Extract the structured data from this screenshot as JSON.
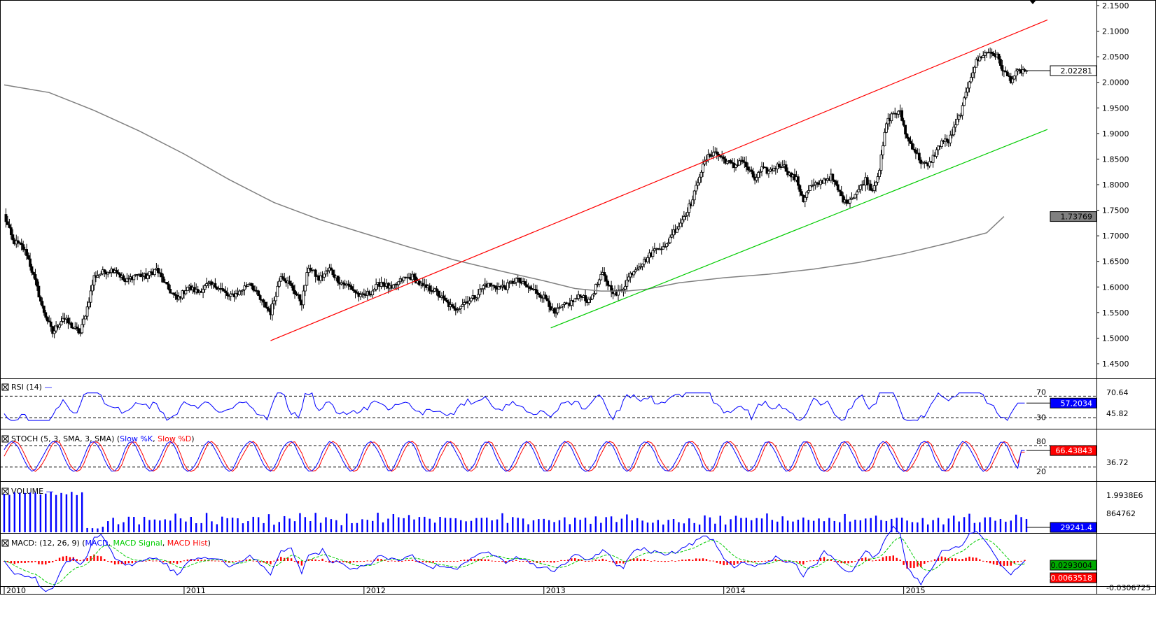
{
  "chart_data": {
    "type": "candlestick",
    "interval": "weekly",
    "price": {
      "y_ticks": [
        "2.1500",
        "2.1000",
        "2.0500",
        "2.0000",
        "1.9500",
        "1.9000",
        "1.8500",
        "1.8000",
        "1.7500",
        "1.7000",
        "1.6500",
        "1.6000",
        "1.5500",
        "1.5000",
        "1.4500"
      ],
      "ylim": [
        1.43,
        2.16
      ],
      "last_price": "2.02281",
      "ma_value": "1.73769",
      "ma_points": [
        [
          0,
          1.995
        ],
        [
          26,
          1.98
        ],
        [
          52,
          1.945
        ],
        [
          78,
          1.905
        ],
        [
          104,
          1.86
        ],
        [
          130,
          1.81
        ],
        [
          156,
          1.765
        ],
        [
          182,
          1.732
        ],
        [
          208,
          1.705
        ],
        [
          234,
          1.678
        ],
        [
          260,
          1.653
        ],
        [
          286,
          1.632
        ],
        [
          312,
          1.612
        ],
        [
          330,
          1.597
        ],
        [
          345,
          1.592
        ],
        [
          360,
          1.592
        ],
        [
          372,
          1.596
        ],
        [
          390,
          1.608
        ],
        [
          416,
          1.618
        ],
        [
          442,
          1.625
        ],
        [
          468,
          1.635
        ],
        [
          494,
          1.648
        ],
        [
          520,
          1.665
        ],
        [
          546,
          1.686
        ],
        [
          568,
          1.706
        ],
        [
          578,
          1.7377
        ]
      ],
      "channel_upper": {
        "from": [
          154,
          1.495
        ],
        "to": [
          592,
          2.122
        ]
      },
      "channel_lower": {
        "from": [
          316,
          1.52
        ],
        "to": [
          592,
          1.908
        ]
      },
      "swing_points": [
        [
          0,
          1.74
        ],
        [
          5,
          1.69
        ],
        [
          10,
          1.68
        ],
        [
          13,
          1.665
        ],
        [
          18,
          1.61
        ],
        [
          22,
          1.56
        ],
        [
          28,
          1.51
        ],
        [
          34,
          1.54
        ],
        [
          40,
          1.52
        ],
        [
          44,
          1.51
        ],
        [
          48,
          1.56
        ],
        [
          52,
          1.62
        ],
        [
          58,
          1.63
        ],
        [
          64,
          1.635
        ],
        [
          70,
          1.61
        ],
        [
          76,
          1.625
        ],
        [
          82,
          1.62
        ],
        [
          88,
          1.635
        ],
        [
          94,
          1.6
        ],
        [
          100,
          1.575
        ],
        [
          106,
          1.6
        ],
        [
          112,
          1.59
        ],
        [
          118,
          1.605
        ],
        [
          124,
          1.6
        ],
        [
          130,
          1.58
        ],
        [
          136,
          1.59
        ],
        [
          142,
          1.61
        ],
        [
          148,
          1.575
        ],
        [
          154,
          1.55
        ],
        [
          160,
          1.625
        ],
        [
          166,
          1.6
        ],
        [
          172,
          1.57
        ],
        [
          176,
          1.64
        ],
        [
          182,
          1.615
        ],
        [
          188,
          1.635
        ],
        [
          194,
          1.61
        ],
        [
          200,
          1.6
        ],
        [
          206,
          1.58
        ],
        [
          212,
          1.59
        ],
        [
          218,
          1.61
        ],
        [
          224,
          1.595
        ],
        [
          230,
          1.615
        ],
        [
          236,
          1.62
        ],
        [
          242,
          1.6
        ],
        [
          248,
          1.595
        ],
        [
          254,
          1.575
        ],
        [
          260,
          1.555
        ],
        [
          266,
          1.57
        ],
        [
          272,
          1.58
        ],
        [
          278,
          1.605
        ],
        [
          284,
          1.6
        ],
        [
          290,
          1.6
        ],
        [
          296,
          1.615
        ],
        [
          302,
          1.6
        ],
        [
          308,
          1.59
        ],
        [
          314,
          1.575
        ],
        [
          318,
          1.545
        ],
        [
          322,
          1.56
        ],
        [
          328,
          1.57
        ],
        [
          334,
          1.585
        ],
        [
          338,
          1.57
        ],
        [
          342,
          1.6
        ],
        [
          346,
          1.625
        ],
        [
          350,
          1.6
        ],
        [
          354,
          1.585
        ],
        [
          358,
          1.6
        ],
        [
          362,
          1.625
        ],
        [
          366,
          1.64
        ],
        [
          370,
          1.65
        ],
        [
          374,
          1.665
        ],
        [
          378,
          1.68
        ],
        [
          382,
          1.675
        ],
        [
          386,
          1.705
        ],
        [
          390,
          1.72
        ],
        [
          394,
          1.745
        ],
        [
          398,
          1.77
        ],
        [
          402,
          1.82
        ],
        [
          406,
          1.85
        ],
        [
          410,
          1.865
        ],
        [
          414,
          1.855
        ],
        [
          418,
          1.845
        ],
        [
          422,
          1.835
        ],
        [
          426,
          1.85
        ],
        [
          430,
          1.83
        ],
        [
          434,
          1.81
        ],
        [
          438,
          1.83
        ],
        [
          442,
          1.825
        ],
        [
          446,
          1.835
        ],
        [
          450,
          1.84
        ],
        [
          454,
          1.82
        ],
        [
          458,
          1.81
        ],
        [
          462,
          1.77
        ],
        [
          466,
          1.795
        ],
        [
          470,
          1.8
        ],
        [
          474,
          1.81
        ],
        [
          478,
          1.815
        ],
        [
          482,
          1.79
        ],
        [
          486,
          1.765
        ],
        [
          490,
          1.775
        ],
        [
          494,
          1.79
        ],
        [
          498,
          1.81
        ],
        [
          502,
          1.79
        ],
        [
          506,
          1.83
        ],
        [
          510,
          1.92
        ],
        [
          514,
          1.94
        ],
        [
          518,
          1.94
        ],
        [
          522,
          1.89
        ],
        [
          526,
          1.87
        ],
        [
          530,
          1.845
        ],
        [
          534,
          1.835
        ],
        [
          538,
          1.86
        ],
        [
          542,
          1.885
        ],
        [
          546,
          1.885
        ],
        [
          550,
          1.915
        ],
        [
          554,
          1.95
        ],
        [
          558,
          2.005
        ],
        [
          562,
          2.04
        ],
        [
          566,
          2.055
        ],
        [
          570,
          2.06
        ],
        [
          574,
          2.05
        ],
        [
          578,
          2.02
        ],
        [
          582,
          2.005
        ],
        [
          586,
          2.02
        ],
        [
          589,
          2.02281
        ]
      ]
    },
    "rsi": {
      "label": "RSI (14)",
      "levels": [
        70,
        30
      ],
      "labels": [
        "70.64",
        "57.2034",
        "45.82"
      ],
      "value": "57.2034"
    },
    "stoch": {
      "label": "STOCH (5, 3, SMA, 3, SMA) (",
      "k_label": "Slow %K",
      "d_label": "Slow %D",
      "levels": [
        80,
        20
      ],
      "labels": [
        "36.72"
      ],
      "value": "66.43843"
    },
    "volume": {
      "label": "VOLUME",
      "labels": [
        "1.9938E6",
        "864762"
      ],
      "value": "29241.4"
    },
    "macd": {
      "label": "MACD: (12, 26, 9) (",
      "macd_label": "MACD",
      "signal_label": "MACD Signal",
      "hist_label": "MACD Hist",
      "value_macd": "0.0293004",
      "value_hist": "-0.0063518",
      "partial_label": "-0.0306725"
    },
    "x_labels": [
      "2010",
      "2011",
      "2012",
      "2013",
      "2014",
      "2015"
    ],
    "colors": {
      "up": "#ffffff",
      "down": "#000000",
      "ma": "#808080",
      "upper_channel": "#ff0000",
      "lower_channel": "#00cc00",
      "rsi": "#0000ff",
      "stoch_k": "#0000ff",
      "stoch_d": "#ff0000",
      "volume": "#0000ff",
      "macd": "#0000ff",
      "signal": "#00cc00",
      "hist": "#ff0000",
      "last_tag": "#0000ff",
      "ma_tag": "#808080",
      "hist_tag": "#ff0000",
      "macd_tag": "#00aa00"
    }
  }
}
